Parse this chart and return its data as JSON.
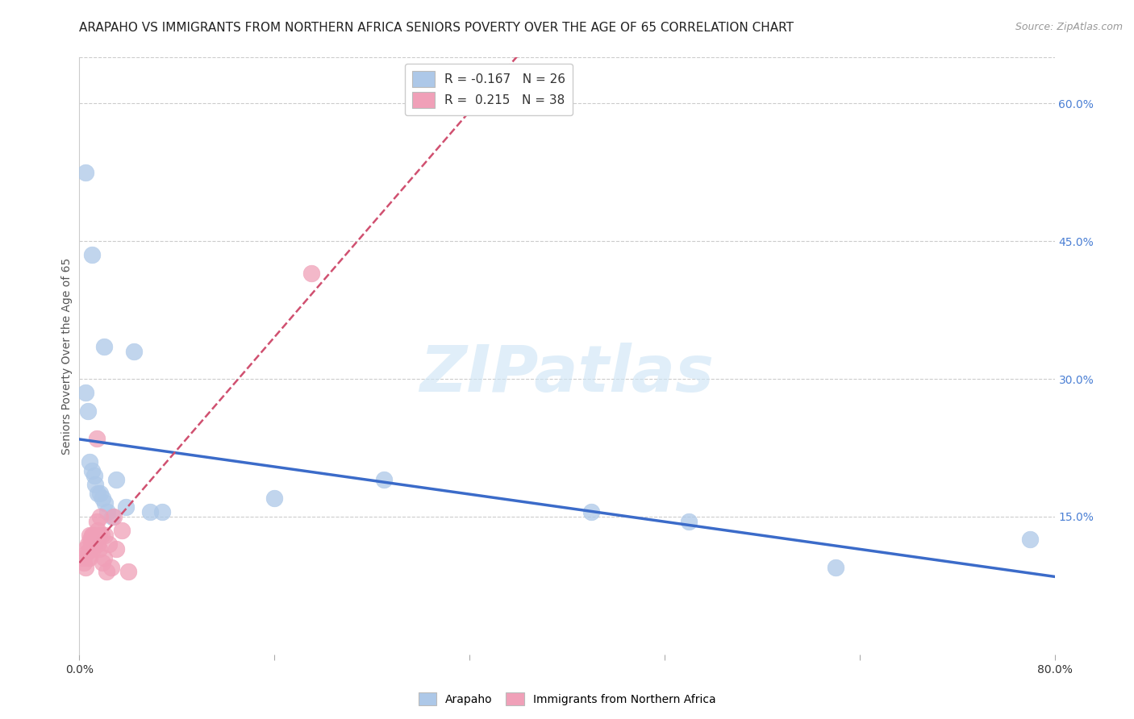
{
  "title": "ARAPAHO VS IMMIGRANTS FROM NORTHERN AFRICA SENIORS POVERTY OVER THE AGE OF 65 CORRELATION CHART",
  "source": "Source: ZipAtlas.com",
  "ylabel": "Seniors Poverty Over the Age of 65",
  "watermark": "ZIPatlas",
  "arapaho": {
    "name": "Arapaho",
    "R": -0.167,
    "N": 26,
    "color": "#adc8e8",
    "line_color": "#3b6bc9",
    "line_style": "solid",
    "points_x": [
      0.005,
      0.01,
      0.02,
      0.045,
      0.005,
      0.007,
      0.008,
      0.01,
      0.012,
      0.013,
      0.015,
      0.017,
      0.019,
      0.021,
      0.023,
      0.027,
      0.03,
      0.5,
      0.62,
      0.78,
      0.42,
      0.16,
      0.25,
      0.068,
      0.058,
      0.038
    ],
    "points_y": [
      0.525,
      0.435,
      0.335,
      0.33,
      0.285,
      0.265,
      0.21,
      0.2,
      0.195,
      0.185,
      0.175,
      0.175,
      0.17,
      0.165,
      0.155,
      0.15,
      0.19,
      0.145,
      0.095,
      0.125,
      0.155,
      0.17,
      0.19,
      0.155,
      0.155,
      0.16
    ]
  },
  "immigrants": {
    "name": "Immigrants from Northern Africa",
    "R": 0.215,
    "N": 38,
    "color": "#f0a0b8",
    "line_color": "#d05070",
    "line_style": "solid",
    "points_x": [
      0.003,
      0.004,
      0.005,
      0.005,
      0.006,
      0.007,
      0.007,
      0.008,
      0.008,
      0.009,
      0.009,
      0.01,
      0.01,
      0.011,
      0.011,
      0.012,
      0.012,
      0.013,
      0.013,
      0.014,
      0.014,
      0.015,
      0.015,
      0.016,
      0.016,
      0.017,
      0.018,
      0.019,
      0.02,
      0.021,
      0.022,
      0.024,
      0.026,
      0.028,
      0.03,
      0.035,
      0.04,
      0.19
    ],
    "points_y": [
      0.105,
      0.1,
      0.115,
      0.095,
      0.11,
      0.12,
      0.105,
      0.13,
      0.105,
      0.125,
      0.115,
      0.13,
      0.12,
      0.13,
      0.115,
      0.13,
      0.12,
      0.13,
      0.125,
      0.145,
      0.235,
      0.135,
      0.12,
      0.115,
      0.13,
      0.15,
      0.13,
      0.1,
      0.105,
      0.13,
      0.09,
      0.12,
      0.095,
      0.15,
      0.115,
      0.135,
      0.09,
      0.415
    ]
  },
  "xlim": [
    0.0,
    0.8
  ],
  "ylim": [
    0.0,
    0.65
  ],
  "xtick_positions": [
    0.0,
    0.16,
    0.32,
    0.48,
    0.64,
    0.8
  ],
  "xticklabels": [
    "0.0%",
    "",
    "",
    "",
    "",
    "80.0%"
  ],
  "ytick_right_positions": [
    0.15,
    0.3,
    0.45,
    0.6
  ],
  "ytick_right_labels": [
    "15.0%",
    "30.0%",
    "45.0%",
    "60.0%"
  ],
  "background_color": "#ffffff",
  "grid_color": "#cccccc",
  "title_fontsize": 11,
  "tick_fontsize": 10,
  "legend_fontsize": 11,
  "source_fontsize": 9
}
